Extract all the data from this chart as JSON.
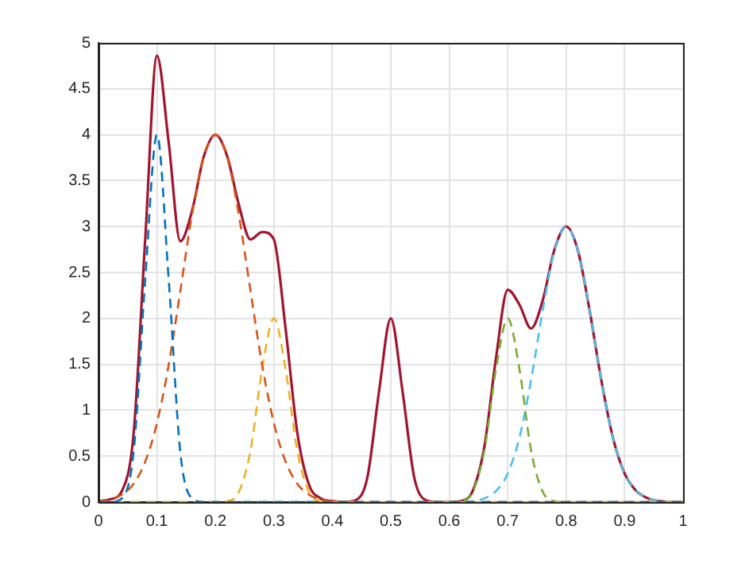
{
  "chart_data": {
    "type": "line",
    "xlim": [
      0,
      1
    ],
    "ylim": [
      0,
      5
    ],
    "xticks": [
      0,
      0.1,
      0.2,
      0.3,
      0.4,
      0.5,
      0.6,
      0.7,
      0.8,
      0.9,
      1
    ],
    "yticks": [
      0,
      0.5,
      1,
      1.5,
      2,
      2.5,
      3,
      3.5,
      4,
      4.5,
      5
    ],
    "grid": true,
    "marker": "none",
    "series": [
      {
        "color": "#0072bd",
        "line_style": "dashed",
        "x": [
          0,
          0.02,
          0.04,
          0.06,
          0.08,
          0.1,
          0.12,
          0.14,
          0.16,
          0.18,
          1
        ],
        "values": [
          0,
          0,
          0.04,
          0.54,
          2.43,
          4,
          2.43,
          0.54,
          0.04,
          0,
          0
        ]
      },
      {
        "color": "#d95319",
        "line_style": "dashed",
        "x": [
          0,
          0.02,
          0.04,
          0.06,
          0.08,
          0.1,
          0.12,
          0.14,
          0.16,
          0.18,
          0.2,
          0.22,
          0.24,
          0.26,
          0.28,
          0.3,
          0.32,
          0.34,
          0.36,
          0.38,
          0.4,
          0.42,
          1
        ],
        "values": [
          0.01,
          0.03,
          0.08,
          0.2,
          0.44,
          0.86,
          1.49,
          2.3,
          3.13,
          3.76,
          4,
          3.76,
          3.13,
          2.3,
          1.49,
          0.86,
          0.44,
          0.2,
          0.08,
          0.03,
          0.01,
          0,
          0
        ]
      },
      {
        "color": "#edb120",
        "line_style": "dashed",
        "x": [
          0,
          0.2,
          0.22,
          0.24,
          0.26,
          0.28,
          0.3,
          0.32,
          0.34,
          0.36,
          0.38,
          0.4,
          1
        ],
        "values": [
          0,
          0,
          0.01,
          0.11,
          0.56,
          1.45,
          2,
          1.45,
          0.56,
          0.11,
          0.01,
          0,
          0
        ]
      },
      {
        "color": "#77ac30",
        "line_style": "dashed",
        "x": [
          0,
          0.6,
          0.62,
          0.64,
          0.66,
          0.68,
          0.7,
          0.72,
          0.74,
          0.76,
          0.78,
          0.8,
          1
        ],
        "values": [
          0,
          0,
          0.01,
          0.11,
          0.56,
          1.45,
          2,
          1.45,
          0.56,
          0.11,
          0.01,
          0,
          0
        ]
      },
      {
        "color": "#4dbeee",
        "line_style": "dashed",
        "x": [
          0,
          0.62,
          0.64,
          0.66,
          0.68,
          0.7,
          0.72,
          0.74,
          0.76,
          0.78,
          0.8,
          0.82,
          0.84,
          0.86,
          0.88,
          0.9,
          0.92,
          0.94,
          0.96,
          0.98,
          1
        ],
        "values": [
          0,
          0,
          0.01,
          0.04,
          0.12,
          0.31,
          0.7,
          1.33,
          2.09,
          2.74,
          3,
          2.74,
          2.09,
          1.33,
          0.7,
          0.31,
          0.12,
          0.04,
          0.01,
          0,
          0
        ]
      },
      {
        "color": "#a2142f",
        "line_style": "solid",
        "x": [
          0,
          0.02,
          0.04,
          0.06,
          0.08,
          0.1,
          0.12,
          0.14,
          0.16,
          0.18,
          0.2,
          0.22,
          0.24,
          0.26,
          0.28,
          0.3,
          0.32,
          0.34,
          0.36,
          0.38,
          0.4,
          0.42,
          0.44,
          0.46,
          0.48,
          0.5,
          0.52,
          0.54,
          0.56,
          0.58,
          0.6,
          0.62,
          0.64,
          0.66,
          0.68,
          0.7,
          0.72,
          0.74,
          0.76,
          0.78,
          0.8,
          0.82,
          0.84,
          0.86,
          0.88,
          0.9,
          0.92,
          0.94,
          0.96,
          0.98,
          1
        ],
        "values": [
          0.01,
          0.03,
          0.12,
          0.74,
          2.87,
          4.86,
          3.92,
          2.84,
          3.17,
          3.76,
          4,
          3.77,
          3.24,
          2.86,
          2.94,
          2.86,
          1.89,
          0.76,
          0.19,
          0.04,
          0.01,
          0,
          0.02,
          0.27,
          1.21,
          2,
          1.21,
          0.27,
          0.02,
          0,
          0,
          0.01,
          0.12,
          0.6,
          1.57,
          2.31,
          2.15,
          1.89,
          2.2,
          2.75,
          3,
          2.74,
          2.09,
          1.33,
          0.7,
          0.31,
          0.12,
          0.04,
          0.01,
          0,
          0
        ]
      }
    ]
  }
}
